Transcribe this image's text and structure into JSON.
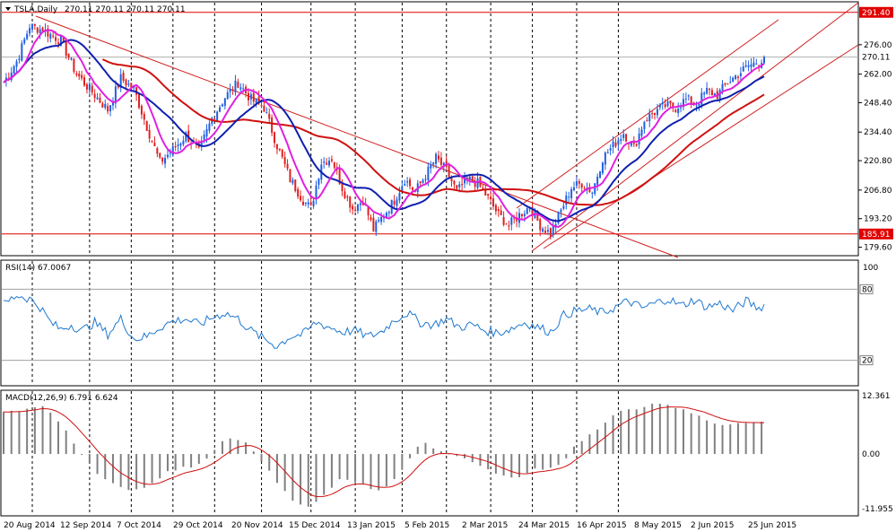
{
  "chart_data": {
    "type": "candlestick",
    "symbol_label": "TSLA,Daily",
    "ohlc_label": "270.11 270.11 270.11 270.11",
    "price_axis": {
      "ticks": [
        "276.00",
        "262.00",
        "248.40",
        "234.40",
        "220.80",
        "206.80",
        "193.20",
        "179.60"
      ],
      "tick_values": [
        276.0,
        262.0,
        248.4,
        234.4,
        220.8,
        206.8,
        193.2,
        179.6
      ],
      "ylim": [
        176,
        296
      ]
    },
    "levels": {
      "resistance": {
        "value": 291.4,
        "label": "291.40",
        "color": "#e00000"
      },
      "support": {
        "value": 185.91,
        "label": "185.91",
        "color": "#e00000"
      },
      "current": {
        "value": 270.11,
        "label": "270.11"
      }
    },
    "dates": [
      "20 Aug 2014",
      "12 Sep 2014",
      "7 Oct 2014",
      "29 Oct 2014",
      "20 Nov 2014",
      "15 Dec 2014",
      "13 Jan 2015",
      "5 Feb 2015",
      "2 Mar 2015",
      "24 Mar 2015",
      "16 Apr 2015",
      "8 May 2015",
      "2 Jun 2015",
      "25 Jun 2015"
    ],
    "close_anchors": [
      [
        0,
        258
      ],
      [
        5,
        268
      ],
      [
        10,
        285
      ],
      [
        15,
        283
      ],
      [
        22,
        278
      ],
      [
        28,
        262
      ],
      [
        35,
        252
      ],
      [
        40,
        245
      ],
      [
        45,
        260
      ],
      [
        50,
        255
      ],
      [
        55,
        237
      ],
      [
        60,
        220
      ],
      [
        65,
        226
      ],
      [
        70,
        233
      ],
      [
        75,
        225
      ],
      [
        80,
        241
      ],
      [
        85,
        251
      ],
      [
        90,
        258
      ],
      [
        95,
        250
      ],
      [
        100,
        246
      ],
      [
        105,
        228
      ],
      [
        110,
        212
      ],
      [
        115,
        202
      ],
      [
        118,
        198
      ],
      [
        122,
        220
      ],
      [
        126,
        222
      ],
      [
        130,
        208
      ],
      [
        134,
        198
      ],
      [
        138,
        202
      ],
      [
        142,
        188
      ],
      [
        146,
        195
      ],
      [
        150,
        202
      ],
      [
        154,
        212
      ],
      [
        158,
        206
      ],
      [
        162,
        214
      ],
      [
        166,
        222
      ],
      [
        170,
        216
      ],
      [
        174,
        206
      ],
      [
        178,
        212
      ],
      [
        182,
        210
      ],
      [
        186,
        203
      ],
      [
        190,
        195
      ],
      [
        194,
        190
      ],
      [
        198,
        195
      ],
      [
        202,
        199
      ],
      [
        206,
        190
      ],
      [
        210,
        186
      ],
      [
        214,
        197
      ],
      [
        218,
        208
      ],
      [
        222,
        210
      ],
      [
        226,
        206
      ],
      [
        230,
        222
      ],
      [
        234,
        228
      ],
      [
        238,
        234
      ],
      [
        242,
        227
      ],
      [
        246,
        240
      ],
      [
        250,
        244
      ],
      [
        254,
        247
      ],
      [
        258,
        246
      ],
      [
        262,
        250
      ],
      [
        266,
        248
      ],
      [
        270,
        254
      ],
      [
        274,
        252
      ],
      [
        278,
        258
      ],
      [
        282,
        262
      ],
      [
        286,
        266
      ],
      [
        290,
        268
      ],
      [
        292,
        270.11
      ]
    ],
    "ma_fast": {
      "color": "#e020e0",
      "period_label": ""
    },
    "ma_mid": {
      "color": "#1020b0",
      "period_label": ""
    },
    "ma_slow": {
      "color": "#d01010",
      "period_label": ""
    },
    "rsi": {
      "label": "RSI(14) 67.0067",
      "ticks": [
        "100",
        "80",
        "20"
      ],
      "tick_values": [
        100,
        80,
        20
      ],
      "color": "#1e78d0",
      "anchors": [
        [
          0,
          67
        ],
        [
          5,
          75
        ],
        [
          10,
          72
        ],
        [
          14,
          65
        ],
        [
          18,
          52
        ],
        [
          22,
          46
        ],
        [
          26,
          50
        ],
        [
          30,
          45
        ],
        [
          35,
          52
        ],
        [
          40,
          42
        ],
        [
          45,
          55
        ],
        [
          50,
          38
        ],
        [
          55,
          40
        ],
        [
          60,
          48
        ],
        [
          65,
          53
        ],
        [
          70,
          55
        ],
        [
          75,
          50
        ],
        [
          80,
          56
        ],
        [
          85,
          60
        ],
        [
          90,
          55
        ],
        [
          95,
          45
        ],
        [
          100,
          38
        ],
        [
          105,
          32
        ],
        [
          110,
          40
        ],
        [
          115,
          42
        ],
        [
          120,
          52
        ],
        [
          125,
          48
        ],
        [
          130,
          44
        ],
        [
          135,
          45
        ],
        [
          140,
          40
        ],
        [
          145,
          44
        ],
        [
          150,
          54
        ],
        [
          155,
          60
        ],
        [
          160,
          52
        ],
        [
          165,
          50
        ],
        [
          170,
          55
        ],
        [
          175,
          48
        ],
        [
          180,
          50
        ],
        [
          185,
          45
        ],
        [
          190,
          43
        ],
        [
          195,
          47
        ],
        [
          200,
          52
        ],
        [
          205,
          48
        ],
        [
          210,
          44
        ],
        [
          215,
          58
        ],
        [
          220,
          62
        ],
        [
          225,
          63
        ],
        [
          230,
          60
        ],
        [
          235,
          65
        ],
        [
          240,
          70
        ],
        [
          245,
          64
        ],
        [
          250,
          68
        ],
        [
          255,
          72
        ],
        [
          260,
          66
        ],
        [
          265,
          71
        ],
        [
          270,
          65
        ],
        [
          275,
          68
        ],
        [
          280,
          62
        ],
        [
          285,
          70
        ],
        [
          290,
          64
        ],
        [
          292,
          67
        ]
      ]
    },
    "macd": {
      "label": "MACD(12,26,9) 6.791 6.624",
      "ticks": [
        "12.361",
        "0.00",
        "-11.955"
      ],
      "tick_values": [
        12.361,
        0.0,
        -11.955
      ],
      "signal_color": "#d01010",
      "bar_color": "#808080",
      "anchors": [
        [
          0,
          9.0
        ],
        [
          8,
          9.5
        ],
        [
          14,
          10.5
        ],
        [
          18,
          9.0
        ],
        [
          24,
          5.0
        ],
        [
          30,
          0.0
        ],
        [
          36,
          -4.0
        ],
        [
          42,
          -6.5
        ],
        [
          50,
          -8.0
        ],
        [
          56,
          -7.0
        ],
        [
          62,
          -4.0
        ],
        [
          68,
          -3.0
        ],
        [
          74,
          -2.5
        ],
        [
          80,
          0.0
        ],
        [
          84,
          2.5
        ],
        [
          88,
          3.5
        ],
        [
          94,
          2.0
        ],
        [
          100,
          -2.0
        ],
        [
          106,
          -7.0
        ],
        [
          112,
          -10.5
        ],
        [
          118,
          -11.2
        ],
        [
          124,
          -8.0
        ],
        [
          130,
          -5.0
        ],
        [
          136,
          -6.0
        ],
        [
          142,
          -8.0
        ],
        [
          148,
          -7.0
        ],
        [
          154,
          -3.0
        ],
        [
          158,
          1.5
        ],
        [
          162,
          2.5
        ],
        [
          168,
          0.5
        ],
        [
          176,
          -0.8
        ],
        [
          184,
          -2.5
        ],
        [
          190,
          -4.5
        ],
        [
          196,
          -5.5
        ],
        [
          202,
          -3.5
        ],
        [
          208,
          -3.0
        ],
        [
          214,
          -2.0
        ],
        [
          220,
          2.0
        ],
        [
          228,
          5.5
        ],
        [
          236,
          9.0
        ],
        [
          244,
          10.0
        ],
        [
          250,
          11.0
        ],
        [
          256,
          10.5
        ],
        [
          262,
          9.5
        ],
        [
          268,
          8.0
        ],
        [
          274,
          6.5
        ],
        [
          280,
          6.2
        ],
        [
          286,
          6.8
        ],
        [
          292,
          6.791
        ]
      ]
    }
  }
}
